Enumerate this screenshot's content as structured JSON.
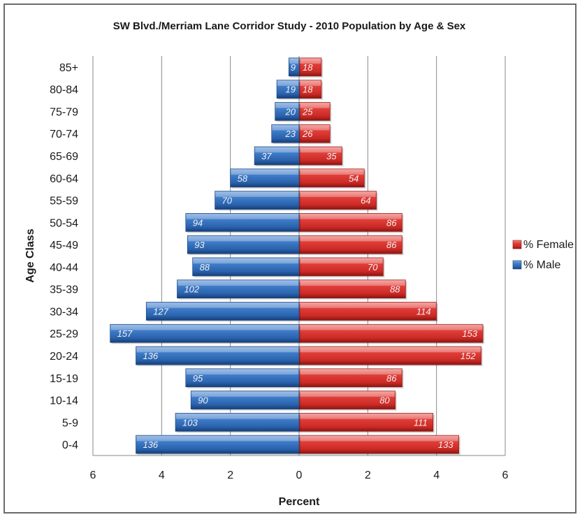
{
  "chart_data": {
    "type": "bar",
    "orientation": "horizontal",
    "layout": "population-pyramid",
    "title": "SW Blvd./Merriam Lane Corridor Study - 2010 Population by Age & Sex",
    "xlabel": "Percent",
    "ylabel": "Age Class",
    "xlim": [
      -6,
      6
    ],
    "x_ticks": [
      -6,
      -4,
      -2,
      0,
      2,
      4,
      6
    ],
    "x_tick_labels": [
      "6",
      "4",
      "2",
      "0",
      "2",
      "4",
      "6"
    ],
    "grid": "vertical",
    "legend_position": "right",
    "categories": [
      "0-4",
      "5-9",
      "10-14",
      "15-19",
      "20-24",
      "25-29",
      "30-34",
      "35-39",
      "40-44",
      "45-49",
      "50-54",
      "55-59",
      "60-64",
      "65-69",
      "70-74",
      "75-79",
      "80-84",
      "85+"
    ],
    "series": [
      {
        "name": "% Female",
        "color": "#d9302c",
        "side": "right",
        "values": [
          4.65,
          3.9,
          2.8,
          3.0,
          5.3,
          5.35,
          4.0,
          3.1,
          2.45,
          3.0,
          3.0,
          2.25,
          1.9,
          1.25,
          0.9,
          0.9,
          0.65,
          0.65
        ],
        "data_labels": [
          "133",
          "111",
          "80",
          "86",
          "152",
          "153",
          "114",
          "88",
          "70",
          "86",
          "86",
          "64",
          "54",
          "35",
          "26",
          "25",
          "18",
          "18"
        ]
      },
      {
        "name": "% Male",
        "color": "#2f6bb6",
        "side": "left",
        "values": [
          4.75,
          3.6,
          3.15,
          3.3,
          4.75,
          5.5,
          4.45,
          3.55,
          3.1,
          3.25,
          3.3,
          2.45,
          2.0,
          1.3,
          0.8,
          0.7,
          0.65,
          0.3
        ],
        "data_labels": [
          "136",
          "103",
          "90",
          "95",
          "136",
          "157",
          "127",
          "102",
          "88",
          "93",
          "94",
          "70",
          "58",
          "37",
          "23",
          "20",
          "19",
          "9"
        ]
      }
    ]
  }
}
